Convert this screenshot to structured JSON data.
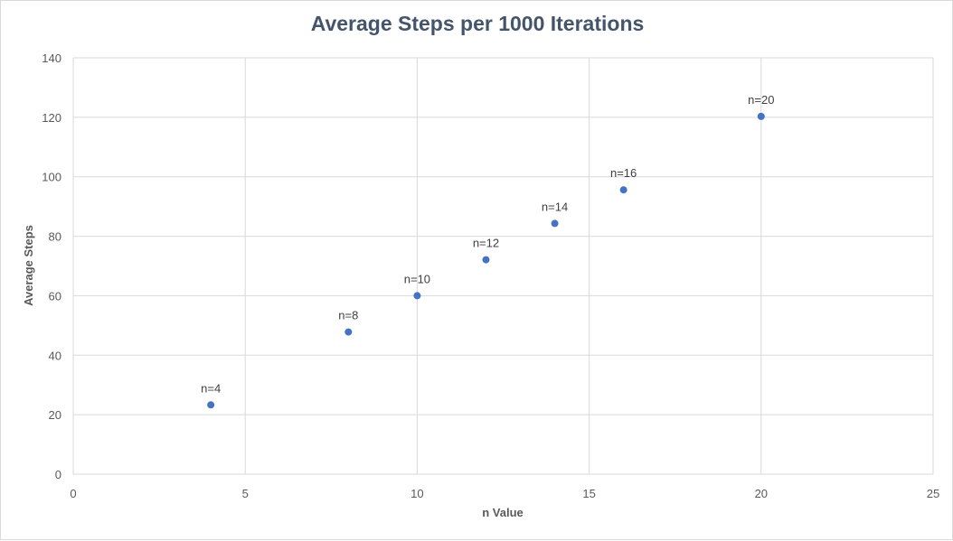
{
  "chart_data": {
    "type": "scatter",
    "title": "Average Steps per 1000 Iterations",
    "xlabel": "n Value",
    "ylabel": "Average Steps",
    "xlim": [
      0,
      25
    ],
    "ylim": [
      0,
      140
    ],
    "xticks": [
      0,
      5,
      10,
      15,
      20,
      25
    ],
    "yticks": [
      0,
      20,
      40,
      60,
      80,
      100,
      120,
      140
    ],
    "grid": true,
    "legend": "none",
    "marker_color": "#4472c4",
    "points": [
      {
        "x": 4,
        "y": 23.3,
        "label": "n=4"
      },
      {
        "x": 8,
        "y": 47.8,
        "label": "n=8"
      },
      {
        "x": 10,
        "y": 60.0,
        "label": "n=10"
      },
      {
        "x": 12,
        "y": 72.1,
        "label": "n=12"
      },
      {
        "x": 14,
        "y": 84.3,
        "label": "n=14"
      },
      {
        "x": 16,
        "y": 95.6,
        "label": "n=16"
      },
      {
        "x": 20,
        "y": 120.3,
        "label": "n=20"
      }
    ]
  }
}
